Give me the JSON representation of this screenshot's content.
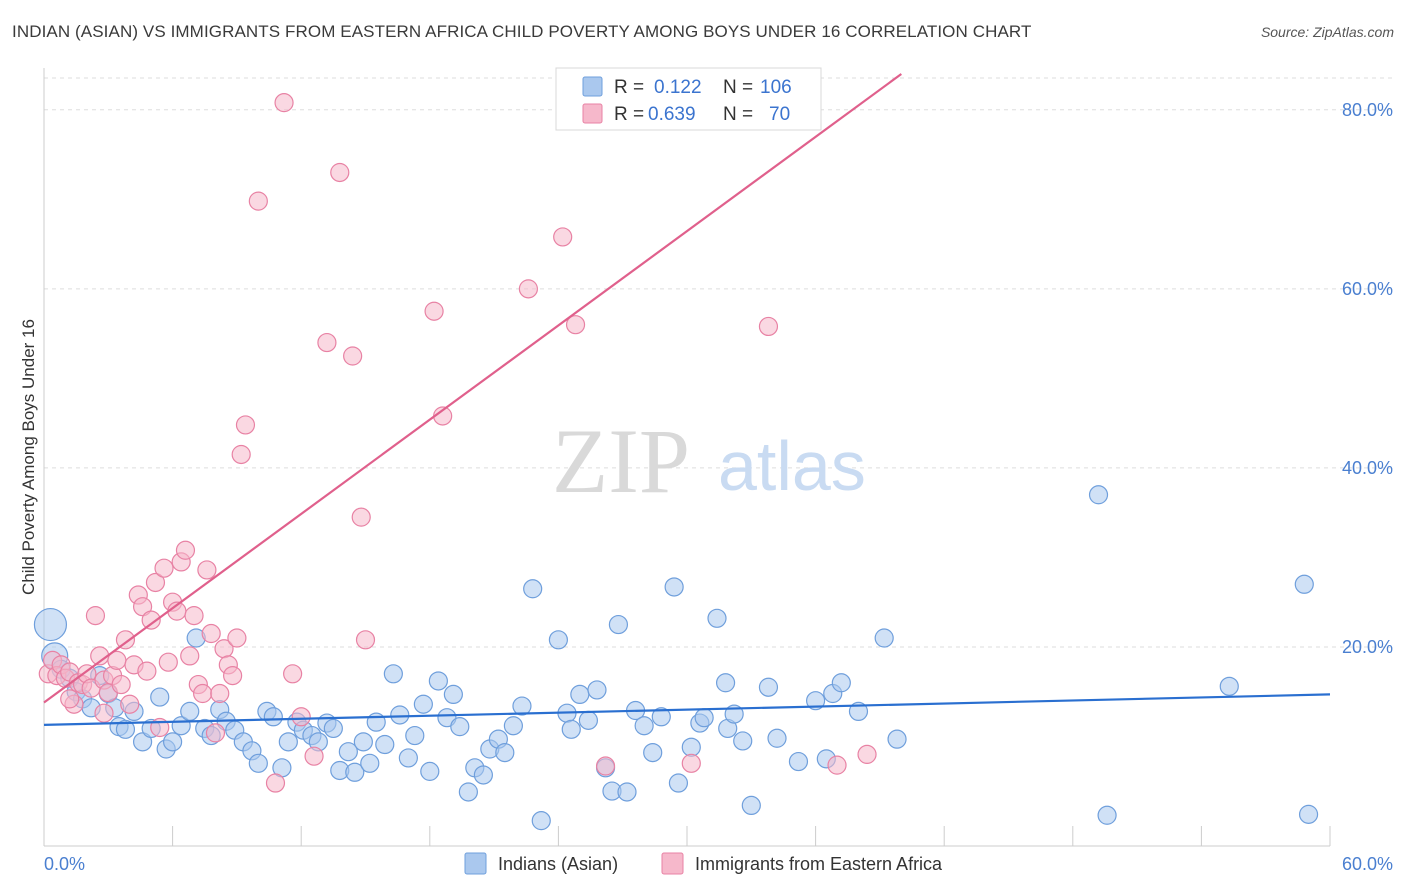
{
  "header": {
    "title": "INDIAN (ASIAN) VS IMMIGRANTS FROM EASTERN AFRICA CHILD POVERTY AMONG BOYS UNDER 16 CORRELATION CHART",
    "source": "Source: ZipAtlas.com"
  },
  "watermark": {
    "zip": "ZIP",
    "atlas": "atlas"
  },
  "legend": {
    "rows": [
      {
        "r_label": "R =",
        "r_value": "0.122",
        "n_label": "N =",
        "n_value": "106"
      },
      {
        "r_label": "R =",
        "r_value": "0.639",
        "n_label": "N =",
        "n_value": "70"
      }
    ]
  },
  "bottom_legend": {
    "items": [
      "Indians (Asian)",
      "Immigrants from Eastern Africa"
    ]
  },
  "colors": {
    "blue_fill": "#aac8ee",
    "blue_stroke": "#6f9fdc",
    "blue_line": "#2a6fd0",
    "pink_fill": "#f6b8cb",
    "pink_stroke": "#e882a4",
    "pink_line": "#e0608c",
    "tick_text": "#4a7fd0"
  },
  "chart_data": {
    "type": "scatter",
    "title": "INDIAN (ASIAN) VS IMMIGRANTS FROM EASTERN AFRICA CHILD POVERTY AMONG BOYS UNDER 16 CORRELATION CHART",
    "xlabel": "",
    "ylabel": "Child Poverty Among Boys Under 16",
    "xlim": [
      0,
      60
    ],
    "ylim": [
      0,
      84
    ],
    "x_tick_labels": [
      "0.0%",
      "60.0%"
    ],
    "y_tick_values": [
      20,
      40,
      60,
      80
    ],
    "y_tick_labels": [
      "20.0%",
      "40.0%",
      "60.0%",
      "80.0%"
    ],
    "grid": true,
    "legend_position": "top-center",
    "series": [
      {
        "name": "Indians (Asian)",
        "color": "#6f9fdc",
        "trend": {
          "x": [
            0,
            60
          ],
          "y": [
            11.3,
            14.7
          ]
        },
        "points": [
          [
            0.3,
            22.5
          ],
          [
            0.5,
            19.0
          ],
          [
            0.8,
            17.5
          ],
          [
            1.2,
            16.5
          ],
          [
            1.5,
            15.0
          ],
          [
            1.8,
            14.2
          ],
          [
            2.2,
            13.2
          ],
          [
            2.6,
            16.8
          ],
          [
            3.0,
            14.8
          ],
          [
            3.3,
            13.2
          ],
          [
            3.5,
            11.1
          ],
          [
            3.8,
            10.8
          ],
          [
            4.2,
            12.8
          ],
          [
            4.6,
            9.4
          ],
          [
            5.0,
            10.9
          ],
          [
            5.4,
            14.4
          ],
          [
            5.7,
            8.6
          ],
          [
            6.0,
            9.4
          ],
          [
            6.4,
            11.2
          ],
          [
            6.8,
            12.8
          ],
          [
            7.1,
            21.0
          ],
          [
            7.5,
            10.9
          ],
          [
            7.8,
            10.1
          ],
          [
            8.2,
            13.0
          ],
          [
            8.5,
            11.7
          ],
          [
            8.9,
            10.7
          ],
          [
            9.3,
            9.4
          ],
          [
            9.7,
            8.4
          ],
          [
            10.0,
            7.0
          ],
          [
            10.4,
            12.8
          ],
          [
            10.7,
            12.2
          ],
          [
            11.1,
            6.5
          ],
          [
            11.4,
            9.4
          ],
          [
            11.8,
            11.6
          ],
          [
            12.1,
            10.7
          ],
          [
            12.5,
            10.1
          ],
          [
            12.8,
            9.4
          ],
          [
            13.2,
            11.5
          ],
          [
            13.5,
            10.9
          ],
          [
            13.8,
            6.2
          ],
          [
            14.2,
            8.3
          ],
          [
            14.5,
            6.0
          ],
          [
            14.9,
            9.4
          ],
          [
            15.2,
            7.0
          ],
          [
            15.5,
            11.6
          ],
          [
            15.9,
            9.1
          ],
          [
            16.3,
            17.0
          ],
          [
            16.6,
            12.4
          ],
          [
            17.0,
            7.6
          ],
          [
            17.3,
            10.1
          ],
          [
            17.7,
            13.6
          ],
          [
            18.0,
            6.1
          ],
          [
            18.4,
            16.2
          ],
          [
            18.8,
            12.1
          ],
          [
            19.1,
            14.7
          ],
          [
            19.4,
            11.1
          ],
          [
            19.8,
            3.8
          ],
          [
            20.1,
            6.5
          ],
          [
            20.5,
            5.7
          ],
          [
            20.8,
            8.6
          ],
          [
            21.2,
            9.7
          ],
          [
            21.5,
            8.2
          ],
          [
            21.9,
            11.2
          ],
          [
            22.3,
            13.4
          ],
          [
            22.8,
            26.5
          ],
          [
            23.2,
            0.6
          ],
          [
            24.0,
            20.8
          ],
          [
            24.4,
            12.6
          ],
          [
            24.6,
            10.8
          ],
          [
            25.0,
            14.7
          ],
          [
            25.4,
            11.8
          ],
          [
            25.8,
            15.2
          ],
          [
            26.2,
            6.5
          ],
          [
            26.5,
            3.9
          ],
          [
            26.8,
            22.5
          ],
          [
            27.2,
            3.8
          ],
          [
            27.6,
            12.9
          ],
          [
            28.0,
            11.2
          ],
          [
            28.4,
            8.2
          ],
          [
            28.8,
            12.2
          ],
          [
            29.4,
            26.7
          ],
          [
            29.6,
            4.8
          ],
          [
            30.2,
            8.8
          ],
          [
            30.6,
            11.5
          ],
          [
            30.8,
            12.1
          ],
          [
            31.4,
            23.2
          ],
          [
            31.8,
            16.0
          ],
          [
            31.9,
            10.9
          ],
          [
            32.2,
            12.5
          ],
          [
            32.6,
            9.5
          ],
          [
            33.0,
            2.3
          ],
          [
            33.8,
            15.5
          ],
          [
            34.2,
            9.8
          ],
          [
            35.2,
            7.2
          ],
          [
            36.0,
            14.0
          ],
          [
            36.5,
            7.5
          ],
          [
            36.8,
            14.8
          ],
          [
            37.2,
            16.0
          ],
          [
            38.0,
            12.8
          ],
          [
            39.2,
            21.0
          ],
          [
            39.8,
            9.7
          ],
          [
            49.2,
            37.0
          ],
          [
            49.6,
            1.2
          ],
          [
            55.3,
            15.6
          ],
          [
            58.8,
            27.0
          ],
          [
            59.0,
            1.3
          ]
        ]
      },
      {
        "name": "Immigrants from Eastern Africa",
        "color": "#e882a4",
        "trend": {
          "x": [
            0,
            40
          ],
          "y": [
            13.8,
            84
          ]
        },
        "points": [
          [
            0.2,
            17.0
          ],
          [
            0.4,
            18.5
          ],
          [
            0.6,
            16.8
          ],
          [
            0.8,
            18.0
          ],
          [
            1.0,
            16.5
          ],
          [
            1.2,
            17.2
          ],
          [
            1.4,
            13.6
          ],
          [
            1.6,
            16.0
          ],
          [
            1.8,
            15.8
          ],
          [
            2.0,
            17.0
          ],
          [
            2.2,
            15.4
          ],
          [
            2.4,
            23.5
          ],
          [
            2.6,
            19.0
          ],
          [
            2.8,
            16.3
          ],
          [
            3.0,
            14.9
          ],
          [
            3.2,
            16.8
          ],
          [
            3.4,
            18.5
          ],
          [
            3.6,
            15.8
          ],
          [
            3.8,
            20.8
          ],
          [
            4.0,
            13.6
          ],
          [
            4.2,
            18.0
          ],
          [
            4.4,
            25.8
          ],
          [
            4.6,
            24.5
          ],
          [
            4.8,
            17.3
          ],
          [
            5.0,
            23.0
          ],
          [
            5.2,
            27.2
          ],
          [
            5.4,
            11.0
          ],
          [
            5.6,
            28.8
          ],
          [
            5.8,
            18.3
          ],
          [
            6.0,
            25.0
          ],
          [
            6.2,
            24.0
          ],
          [
            6.4,
            29.5
          ],
          [
            6.6,
            30.8
          ],
          [
            6.8,
            19.0
          ],
          [
            7.0,
            23.5
          ],
          [
            7.2,
            15.8
          ],
          [
            7.4,
            14.8
          ],
          [
            7.6,
            28.6
          ],
          [
            7.8,
            21.5
          ],
          [
            8.0,
            10.4
          ],
          [
            8.2,
            14.8
          ],
          [
            8.4,
            19.8
          ],
          [
            8.6,
            18.0
          ],
          [
            8.8,
            16.8
          ],
          [
            9.0,
            21.0
          ],
          [
            9.2,
            41.5
          ],
          [
            9.4,
            44.8
          ],
          [
            10.0,
            69.8
          ],
          [
            10.8,
            4.8
          ],
          [
            11.2,
            80.8
          ],
          [
            11.6,
            17.0
          ],
          [
            12.0,
            12.2
          ],
          [
            12.6,
            7.8
          ],
          [
            13.2,
            54.0
          ],
          [
            13.8,
            73.0
          ],
          [
            14.4,
            52.5
          ],
          [
            14.8,
            34.5
          ],
          [
            15.0,
            20.8
          ],
          [
            18.2,
            57.5
          ],
          [
            18.6,
            45.8
          ],
          [
            22.6,
            60.0
          ],
          [
            24.2,
            65.8
          ],
          [
            24.8,
            56.0
          ],
          [
            26.2,
            6.7
          ],
          [
            30.2,
            7.0
          ],
          [
            33.8,
            55.8
          ],
          [
            37.0,
            6.8
          ],
          [
            38.4,
            8.0
          ],
          [
            2.8,
            12.6
          ],
          [
            1.2,
            14.2
          ]
        ]
      }
    ]
  },
  "y_axis_title": "Child Poverty Among Boys Under 16"
}
